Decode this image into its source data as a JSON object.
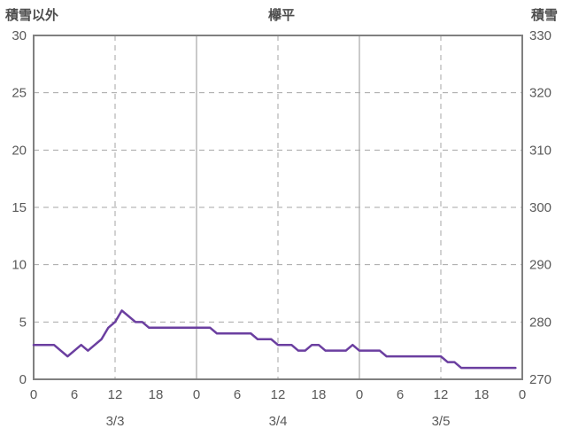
{
  "chart_data": {
    "type": "line",
    "title": "欅平",
    "left_axis": {
      "label": "積雪以外",
      "min": 0,
      "max": 30,
      "ticks": [
        0,
        5,
        10,
        15,
        20,
        25,
        30
      ]
    },
    "right_axis": {
      "label": "積雪",
      "min": 270,
      "max": 330,
      "ticks": [
        270,
        280,
        290,
        300,
        310,
        320,
        330
      ]
    },
    "x_axis": {
      "hours_total": 72,
      "hour_ticks": [
        0,
        6,
        12,
        18,
        24,
        30,
        36,
        42,
        48,
        54,
        60,
        66,
        72
      ],
      "hour_tick_labels": [
        "0",
        "6",
        "12",
        "18",
        "0",
        "6",
        "12",
        "18",
        "0",
        "6",
        "12",
        "18",
        "0"
      ],
      "day_labels": [
        "3/3",
        "3/4",
        "3/5"
      ],
      "day_label_hours": [
        12,
        36,
        60
      ]
    },
    "grid": {
      "horizontal_dashed_values": [
        5,
        10,
        15,
        20,
        25
      ],
      "vertical_solid_hours": [
        24,
        48
      ],
      "vertical_dashed_hours": [
        12,
        36,
        60
      ]
    },
    "series": [
      {
        "name": "積雪以外",
        "axis": "left",
        "color": "#6b3fa0",
        "interval_hours": 1,
        "start_hour": 0,
        "values": [
          3,
          3,
          3,
          3,
          2.5,
          2,
          2.5,
          3,
          2.5,
          3,
          3.5,
          4.5,
          5,
          6,
          5.5,
          5,
          5,
          4.5,
          4.5,
          4.5,
          4.5,
          4.5,
          4.5,
          4.5,
          4.5,
          4.5,
          4.5,
          4,
          4,
          4,
          4,
          4,
          4,
          3.5,
          3.5,
          3.5,
          3,
          3,
          3,
          2.5,
          2.5,
          3,
          3,
          2.5,
          2.5,
          2.5,
          2.5,
          3,
          2.5,
          2.5,
          2.5,
          2.5,
          2,
          2,
          2,
          2,
          2,
          2,
          2,
          2,
          2,
          1.5,
          1.5,
          1,
          1,
          1,
          1,
          1,
          1,
          1,
          1,
          1
        ]
      }
    ],
    "colors": {
      "axis_text": "#595959",
      "border": "#808080",
      "grid": "#a6a6a6"
    }
  }
}
